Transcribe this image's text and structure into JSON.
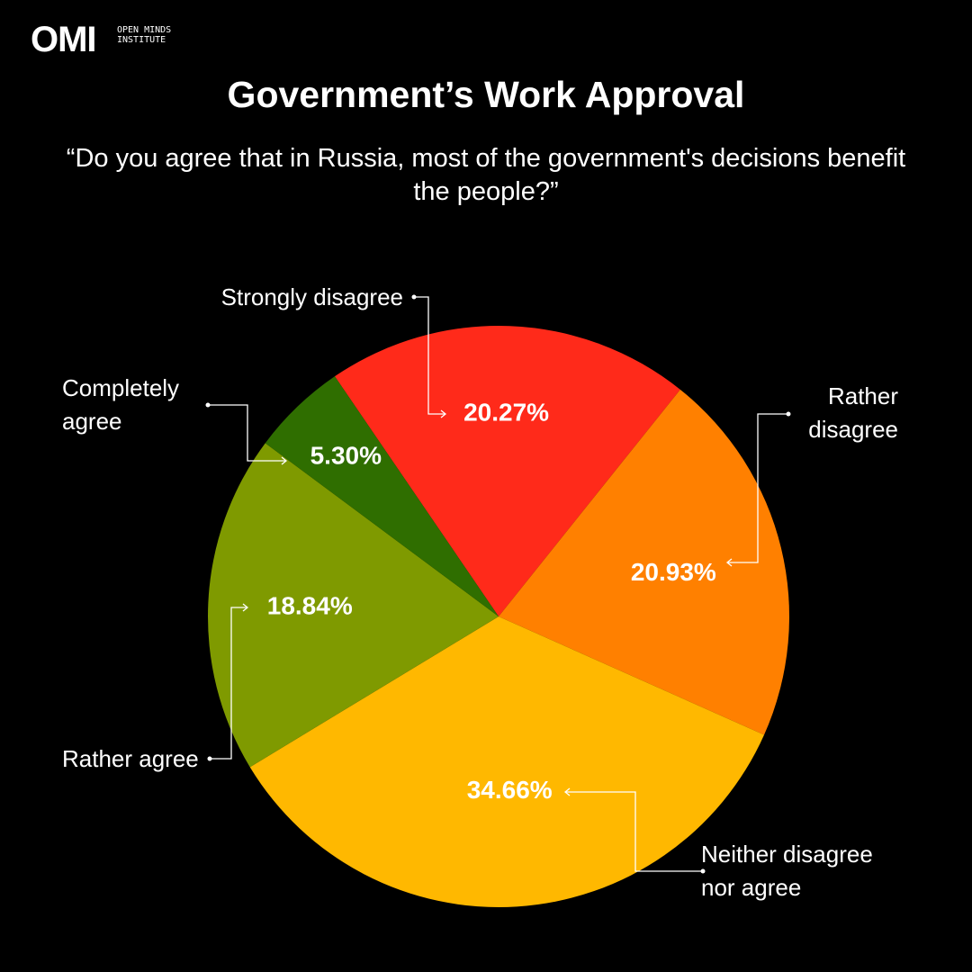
{
  "logo": {
    "mark": "OMI",
    "name": "OPEN MINDS INSTITUTE"
  },
  "chart_data": {
    "type": "pie",
    "title": "Government’s Work Approval",
    "subtitle": "“Do you agree that in Russia, most of the government's decisions benefit the people?”",
    "categories": [
      "Strongly disagree",
      "Rather disagree",
      "Neither disagree nor agree",
      "Rather agree",
      "Completely agree"
    ],
    "values": [
      20.27,
      20.93,
      34.66,
      18.84,
      5.3
    ],
    "value_labels": [
      "20.27%",
      "20.93%",
      "34.66%",
      "18.84%",
      "5.30%"
    ],
    "colors": [
      "#ff2a1a",
      "#ff8000",
      "#ffb800",
      "#7f9a00",
      "#2f6e00"
    ]
  }
}
